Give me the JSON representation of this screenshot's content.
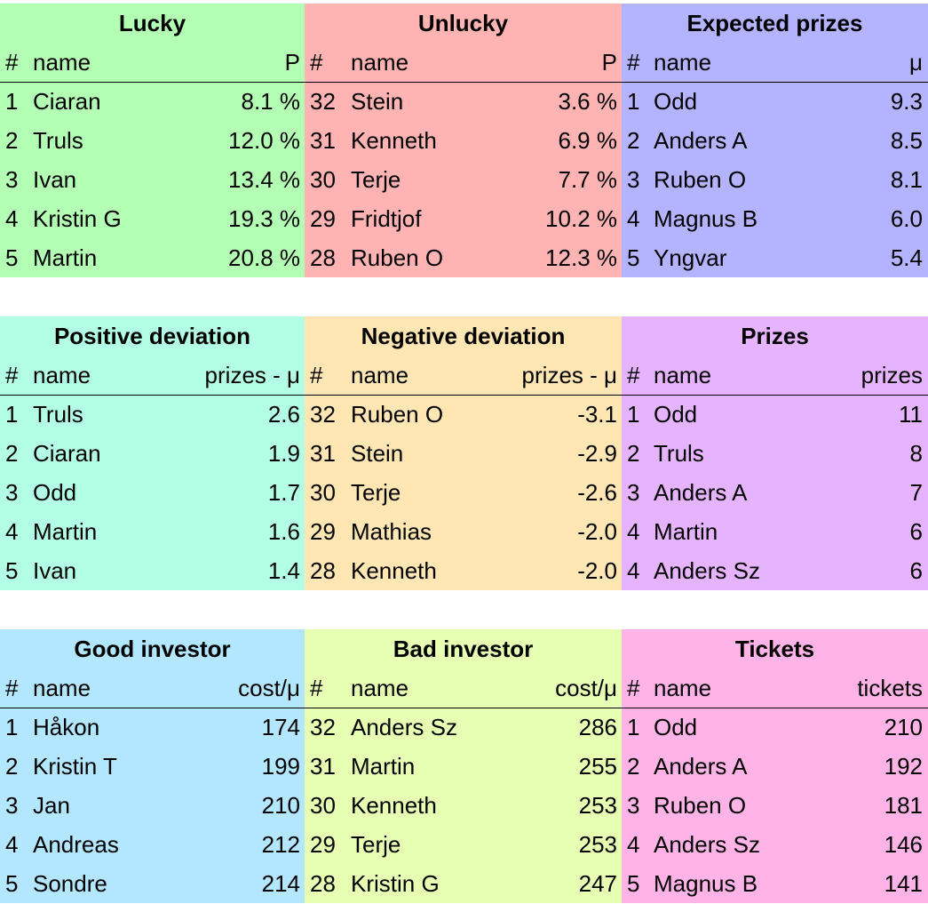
{
  "tables": [
    {
      "title": "Lucky",
      "color": "#b3ffb3",
      "headers": [
        "#",
        "name",
        "P"
      ],
      "rows": [
        [
          "1",
          "Ciaran",
          "8.1 %"
        ],
        [
          "2",
          "Truls",
          "12.0 %"
        ],
        [
          "3",
          "Ivan",
          "13.4 %"
        ],
        [
          "4",
          "Kristin G",
          "19.3 %"
        ],
        [
          "5",
          "Martin",
          "20.8 %"
        ]
      ]
    },
    {
      "title": "Unlucky",
      "color": "#ffb3b3",
      "headers": [
        "#",
        "name",
        "P"
      ],
      "rows": [
        [
          "32",
          "Stein",
          "3.6 %"
        ],
        [
          "31",
          "Kenneth",
          "6.9 %"
        ],
        [
          "30",
          "Terje",
          "7.7 %"
        ],
        [
          "29",
          "Fridtjof",
          "10.2 %"
        ],
        [
          "28",
          "Ruben O",
          "12.3 %"
        ]
      ]
    },
    {
      "title": "Expected prizes",
      "color": "#b3b3ff",
      "headers": [
        "#",
        "name",
        "μ"
      ],
      "rows": [
        [
          "1",
          "Odd",
          "9.3"
        ],
        [
          "2",
          "Anders A",
          "8.5"
        ],
        [
          "3",
          "Ruben O",
          "8.1"
        ],
        [
          "4",
          "Magnus B",
          "6.0"
        ],
        [
          "5",
          "Yngvar",
          "5.4"
        ]
      ]
    },
    {
      "title": "Positive deviation",
      "color": "#b3ffe6",
      "headers": [
        "#",
        "name",
        "prizes - μ"
      ],
      "rows": [
        [
          "1",
          "Truls",
          "2.6"
        ],
        [
          "2",
          "Ciaran",
          "1.9"
        ],
        [
          "3",
          "Odd",
          "1.7"
        ],
        [
          "4",
          "Martin",
          "1.6"
        ],
        [
          "5",
          "Ivan",
          "1.4"
        ]
      ]
    },
    {
      "title": "Negative deviation",
      "color": "#ffe6b3",
      "headers": [
        "#",
        "name",
        "prizes - μ"
      ],
      "rows": [
        [
          "32",
          "Ruben O",
          "-3.1"
        ],
        [
          "31",
          "Stein",
          "-2.9"
        ],
        [
          "30",
          "Terje",
          "-2.6"
        ],
        [
          "29",
          "Mathias",
          "-2.0"
        ],
        [
          "28",
          "Kenneth",
          "-2.0"
        ]
      ]
    },
    {
      "title": "Prizes",
      "color": "#e6b3ff",
      "headers": [
        "#",
        "name",
        "prizes"
      ],
      "rows": [
        [
          "1",
          "Odd",
          "11"
        ],
        [
          "2",
          "Truls",
          "8"
        ],
        [
          "3",
          "Anders A",
          "7"
        ],
        [
          "4",
          "Martin",
          "6"
        ],
        [
          "4",
          "Anders Sz",
          "6"
        ]
      ]
    },
    {
      "title": "Good investor",
      "color": "#b3e6ff",
      "headers": [
        "#",
        "name",
        "cost/μ"
      ],
      "rows": [
        [
          "1",
          "Håkon",
          "174"
        ],
        [
          "2",
          "Kristin T",
          "199"
        ],
        [
          "3",
          "Jan",
          "210"
        ],
        [
          "4",
          "Andreas",
          "212"
        ],
        [
          "5",
          "Sondre",
          "214"
        ]
      ]
    },
    {
      "title": "Bad investor",
      "color": "#e6ffb3",
      "headers": [
        "#",
        "name",
        "cost/μ"
      ],
      "rows": [
        [
          "32",
          "Anders Sz",
          "286"
        ],
        [
          "31",
          "Martin",
          "255"
        ],
        [
          "30",
          "Kenneth",
          "253"
        ],
        [
          "29",
          "Terje",
          "253"
        ],
        [
          "28",
          "Kristin G",
          "247"
        ]
      ]
    },
    {
      "title": "Tickets",
      "color": "#ffb3e6",
      "headers": [
        "#",
        "name",
        "tickets"
      ],
      "rows": [
        [
          "1",
          "Odd",
          "210"
        ],
        [
          "2",
          "Anders A",
          "192"
        ],
        [
          "3",
          "Ruben O",
          "181"
        ],
        [
          "4",
          "Anders Sz",
          "146"
        ],
        [
          "5",
          "Magnus B",
          "141"
        ]
      ]
    }
  ]
}
